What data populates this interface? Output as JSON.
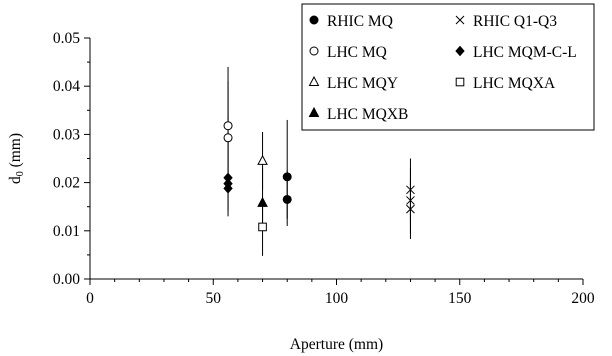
{
  "chart_data": {
    "type": "scatter",
    "xlabel": "Aperture (mm)",
    "ylabel": "d0 (mm)",
    "xlim": [
      0,
      200
    ],
    "ylim": [
      0,
      0.05
    ],
    "x_ticks": [
      "0",
      "50",
      "100",
      "150",
      "200"
    ],
    "y_ticks": [
      "0.00",
      "0.01",
      "0.02",
      "0.03",
      "0.04",
      "0.05"
    ],
    "grid": false,
    "legend_position": "top-right",
    "series": [
      {
        "name": "RHIC MQ",
        "marker": "filled-circle",
        "points": [
          {
            "x": 80,
            "y": 0.0212,
            "ylow": 0.0125,
            "yhigh": 0.033
          },
          {
            "x": 80,
            "y": 0.0165,
            "ylow": 0.011,
            "yhigh": 0.0225
          }
        ]
      },
      {
        "name": "RHIC Q1-Q3",
        "marker": "cross",
        "points": [
          {
            "x": 130,
            "y": 0.0185,
            "ylow": 0.012,
            "yhigh": 0.025
          },
          {
            "x": 130,
            "y": 0.0163,
            "ylow": 0.0095,
            "yhigh": 0.023
          },
          {
            "x": 130,
            "y": 0.0145,
            "ylow": 0.0083,
            "yhigh": 0.0205
          }
        ]
      },
      {
        "name": "LHC MQ",
        "marker": "open-circle",
        "points": [
          {
            "x": 56,
            "y": 0.0318,
            "ylow": 0.021,
            "yhigh": 0.044
          },
          {
            "x": 56,
            "y": 0.0293,
            "ylow": 0.018,
            "yhigh": 0.041
          }
        ]
      },
      {
        "name": "LHC MQM-C-L",
        "marker": "filled-diamond",
        "points": [
          {
            "x": 56,
            "y": 0.021,
            "ylow": 0.0145,
            "yhigh": 0.041
          },
          {
            "x": 56,
            "y": 0.0198,
            "ylow": 0.014,
            "yhigh": 0.034
          },
          {
            "x": 56,
            "y": 0.0188,
            "ylow": 0.013,
            "yhigh": 0.029
          }
        ]
      },
      {
        "name": "LHC MQY",
        "marker": "open-triangle",
        "points": [
          {
            "x": 70,
            "y": 0.0245,
            "ylow": 0.0185,
            "yhigh": 0.0305
          }
        ]
      },
      {
        "name": "LHC MQXA",
        "marker": "open-square",
        "points": [
          {
            "x": 70,
            "y": 0.0108,
            "ylow": 0.0048,
            "yhigh": 0.0168
          }
        ]
      },
      {
        "name": "LHC MQXB",
        "marker": "filled-triangle",
        "points": [
          {
            "x": 70,
            "y": 0.0158,
            "ylow": 0.0115,
            "yhigh": 0.023
          }
        ]
      }
    ],
    "legend_order": [
      0,
      1,
      2,
      3,
      4,
      5,
      6
    ]
  }
}
